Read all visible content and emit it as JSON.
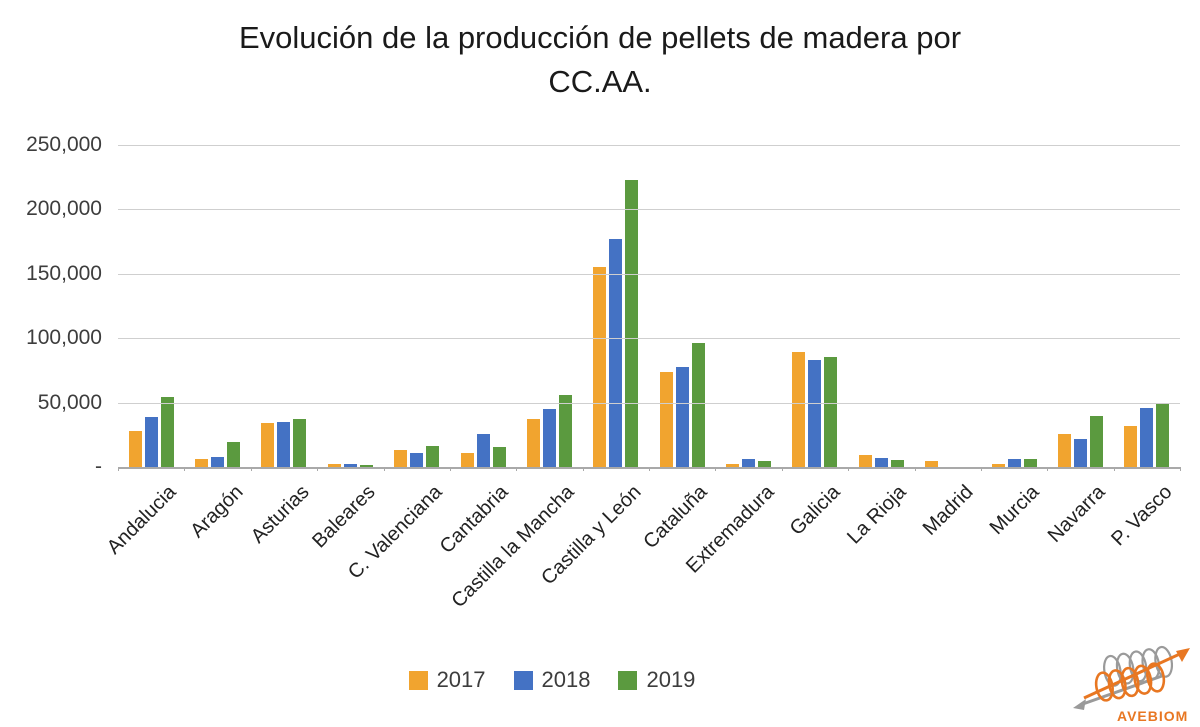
{
  "title": {
    "line1": "Evolución de la producción de pellets de madera por",
    "line2": "CC.AA."
  },
  "y_axis": {
    "ticks": [
      {
        "label": "250,000",
        "value": 250000
      },
      {
        "label": "200,000",
        "value": 200000
      },
      {
        "label": "150,000",
        "value": 150000
      },
      {
        "label": "100,000",
        "value": 100000
      },
      {
        "label": "50,000",
        "value": 50000
      },
      {
        "label": "-",
        "value": 0
      }
    ]
  },
  "legend": {
    "items": [
      "2017",
      "2018",
      "2019"
    ]
  },
  "colors": {
    "y2017": "#F1A42F",
    "y2018": "#4472C4",
    "y2019": "#5B9A3F",
    "gridline": "#CFCFCF",
    "axis": "#A9A9A9",
    "logo_orange": "#E87722",
    "logo_gray": "#9A9A9A"
  },
  "logo": {
    "text": "AVEBIOM"
  },
  "chart_data": {
    "type": "bar",
    "title": "Evolución de la producción de pellets de madera por CC.AA.",
    "xlabel": "",
    "ylabel": "",
    "ylim": [
      0,
      250000
    ],
    "ytick_interval": 50000,
    "grid": true,
    "legend_position": "bottom",
    "categories": [
      "Andalucia",
      "Aragón",
      "Asturias",
      "Baleares",
      "C. Valenciana",
      "Cantabria",
      "Castilla la Mancha",
      "Castilla y León",
      "Cataluña",
      "Extremadura",
      "Galicia",
      "La Rioja",
      "Madrid",
      "Murcia",
      "Navarra",
      "P. Vasco"
    ],
    "series": [
      {
        "name": "2017",
        "color": "#F1A42F",
        "values": [
          28000,
          6000,
          34000,
          2000,
          13500,
          10500,
          37500,
          155000,
          73500,
          2500,
          89000,
          9500,
          5000,
          2500,
          25500,
          31500
        ]
      },
      {
        "name": "2018",
        "color": "#4472C4",
        "values": [
          38500,
          8000,
          35000,
          2000,
          10500,
          25500,
          45000,
          177000,
          78000,
          6000,
          83000,
          7000,
          0,
          6500,
          22000,
          46000
        ]
      },
      {
        "name": "2019",
        "color": "#5B9A3F",
        "values": [
          54000,
          19500,
          37500,
          1500,
          16500,
          15500,
          56000,
          223000,
          96000,
          5000,
          85500,
          5500,
          0,
          6000,
          39500,
          50000
        ]
      }
    ]
  }
}
